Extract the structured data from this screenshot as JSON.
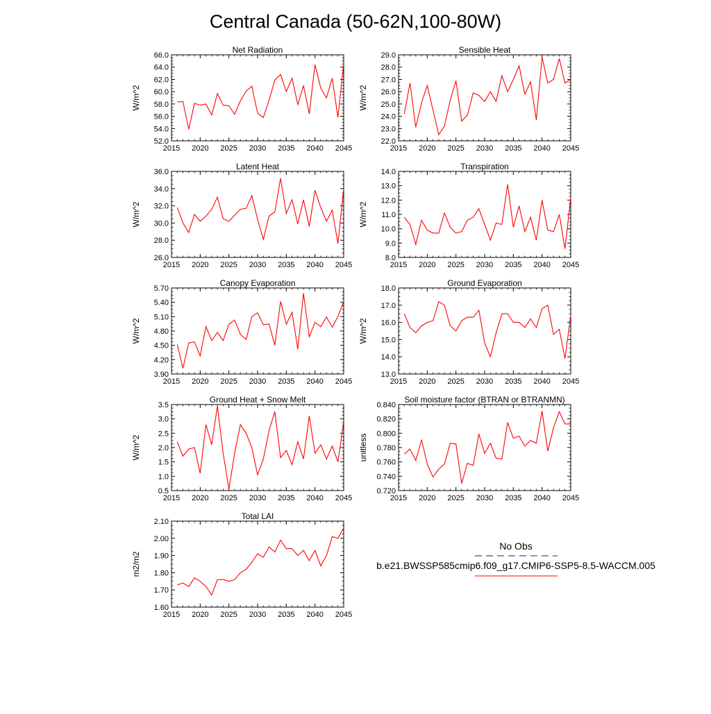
{
  "title": "Central Canada (50-62N,100-80W)",
  "legend": {
    "obs_label": "No Obs",
    "model_label": "b.e21.BWSSP585cmip6.f09_g17.CMIP6-SSP5-8.5-WACCM.005",
    "obs_color": "#1a1a8c",
    "model_color": "#ff0000"
  },
  "chart_data": [
    {
      "type": "line",
      "title": "Net Radiation",
      "ylabel": "W/m^2",
      "xlim": [
        2015,
        2045
      ],
      "ylim": [
        52.0,
        66.0
      ],
      "xticks": [
        "2015",
        "2020",
        "2025",
        "2030",
        "2035",
        "2040",
        "2045"
      ],
      "yticks": [
        "52.0",
        "54.0",
        "56.0",
        "58.0",
        "60.0",
        "62.0",
        "64.0",
        "66.0"
      ],
      "x": [
        2016,
        2017,
        2018,
        2019,
        2020,
        2021,
        2022,
        2023,
        2024,
        2025,
        2026,
        2027,
        2028,
        2029,
        2030,
        2031,
        2032,
        2033,
        2034,
        2035,
        2036,
        2037,
        2038,
        2039,
        2040,
        2041,
        2042,
        2043,
        2044,
        2045
      ],
      "series": [
        {
          "name": "b.e21.BWSSP585cmip6.f09_g17.CMIP6-SSP5-8.5-WACCM.005",
          "color": "#ff0000",
          "values": [
            58.3,
            58.4,
            53.9,
            58.1,
            57.8,
            58.0,
            56.2,
            59.7,
            57.8,
            57.7,
            56.3,
            58.5,
            60.1,
            60.9,
            56.5,
            55.8,
            58.6,
            61.9,
            62.8,
            60.0,
            62.2,
            57.9,
            61.0,
            56.4,
            64.4,
            60.6,
            59.0,
            62.2,
            55.8,
            64.6
          ]
        }
      ]
    },
    {
      "type": "line",
      "title": "Sensible Heat",
      "ylabel": "W/m^2",
      "xlim": [
        2015,
        2045
      ],
      "ylim": [
        22.0,
        29.0
      ],
      "xticks": [
        "2015",
        "2020",
        "2025",
        "2030",
        "2035",
        "2040",
        "2045"
      ],
      "yticks": [
        "22.0",
        "23.0",
        "24.0",
        "25.0",
        "26.0",
        "27.0",
        "28.0",
        "29.0"
      ],
      "x": [
        2016,
        2017,
        2018,
        2019,
        2020,
        2021,
        2022,
        2023,
        2024,
        2025,
        2026,
        2027,
        2028,
        2029,
        2030,
        2031,
        2032,
        2033,
        2034,
        2035,
        2036,
        2037,
        2038,
        2039,
        2040,
        2041,
        2042,
        2043,
        2044,
        2045
      ],
      "series": [
        {
          "name": "b.e21.BWSSP585cmip6.f09_g17.CMIP6-SSP5-8.5-WACCM.005",
          "color": "#ff0000",
          "values": [
            24.2,
            26.7,
            23.1,
            25.1,
            26.5,
            24.5,
            22.5,
            23.2,
            25.3,
            26.9,
            23.6,
            24.1,
            25.9,
            25.7,
            25.2,
            26.0,
            25.2,
            27.3,
            26.0,
            27.0,
            28.1,
            25.8,
            26.8,
            23.7,
            28.8,
            26.7,
            27.0,
            28.7,
            26.7,
            27.0
          ]
        }
      ]
    },
    {
      "type": "line",
      "title": "Latent Heat",
      "ylabel": "W/m^2",
      "xlim": [
        2015,
        2045
      ],
      "ylim": [
        26.0,
        36.0
      ],
      "xticks": [
        "2015",
        "2020",
        "2025",
        "2030",
        "2035",
        "2040",
        "2045"
      ],
      "yticks": [
        "26.0",
        "28.0",
        "30.0",
        "32.0",
        "34.0",
        "36.0"
      ],
      "x": [
        2016,
        2017,
        2018,
        2019,
        2020,
        2021,
        2022,
        2023,
        2024,
        2025,
        2026,
        2027,
        2028,
        2029,
        2030,
        2031,
        2032,
        2033,
        2034,
        2035,
        2036,
        2037,
        2038,
        2039,
        2040,
        2041,
        2042,
        2043,
        2044,
        2045
      ],
      "series": [
        {
          "name": "b.e21.BWSSP585cmip6.f09_g17.CMIP6-SSP5-8.5-WACCM.005",
          "color": "#ff0000",
          "values": [
            31.8,
            30.0,
            28.9,
            31.0,
            30.2,
            30.8,
            31.6,
            33.0,
            30.5,
            30.2,
            30.9,
            31.6,
            31.7,
            33.2,
            30.4,
            28.1,
            30.8,
            31.3,
            35.2,
            31.1,
            32.7,
            29.9,
            32.7,
            29.6,
            33.8,
            31.8,
            30.2,
            31.5,
            27.6,
            34.0
          ]
        }
      ]
    },
    {
      "type": "line",
      "title": "Transpiration",
      "ylabel": "W/m^2",
      "xlim": [
        2015,
        2045
      ],
      "ylim": [
        8.0,
        14.0
      ],
      "xticks": [
        "2015",
        "2020",
        "2025",
        "2030",
        "2035",
        "2040",
        "2045"
      ],
      "yticks": [
        "8.0",
        "9.0",
        "10.0",
        "11.0",
        "12.0",
        "13.0",
        "14.0"
      ],
      "x": [
        2016,
        2017,
        2018,
        2019,
        2020,
        2021,
        2022,
        2023,
        2024,
        2025,
        2026,
        2027,
        2028,
        2029,
        2030,
        2031,
        2032,
        2033,
        2034,
        2035,
        2036,
        2037,
        2038,
        2039,
        2040,
        2041,
        2042,
        2043,
        2044,
        2045
      ],
      "series": [
        {
          "name": "b.e21.BWSSP585cmip6.f09_g17.CMIP6-SSP5-8.5-WACCM.005",
          "color": "#ff0000",
          "values": [
            10.8,
            10.3,
            8.9,
            10.6,
            9.9,
            9.7,
            9.7,
            11.1,
            10.1,
            9.7,
            9.8,
            10.6,
            10.8,
            11.4,
            10.3,
            9.2,
            10.4,
            10.3,
            13.1,
            10.1,
            11.6,
            9.8,
            10.8,
            9.2,
            12.0,
            9.9,
            9.8,
            11.0,
            8.6,
            12.2
          ]
        }
      ]
    },
    {
      "type": "line",
      "title": "Canopy Evaporation",
      "ylabel": "W/m^2",
      "xlim": [
        2015,
        2045
      ],
      "ylim": [
        3.9,
        5.7
      ],
      "xticks": [
        "2015",
        "2020",
        "2025",
        "2030",
        "2035",
        "2040",
        "2045"
      ],
      "yticks": [
        "3.90",
        "4.20",
        "4.50",
        "4.80",
        "5.10",
        "5.40",
        "5.70"
      ],
      "x": [
        2016,
        2017,
        2018,
        2019,
        2020,
        2021,
        2022,
        2023,
        2024,
        2025,
        2026,
        2027,
        2028,
        2029,
        2030,
        2031,
        2032,
        2033,
        2034,
        2035,
        2036,
        2037,
        2038,
        2039,
        2040,
        2041,
        2042,
        2043,
        2044,
        2045
      ],
      "series": [
        {
          "name": "b.e21.BWSSP585cmip6.f09_g17.CMIP6-SSP5-8.5-WACCM.005",
          "color": "#ff0000",
          "values": [
            4.52,
            4.02,
            4.55,
            4.57,
            4.28,
            4.89,
            4.6,
            4.77,
            4.6,
            4.94,
            5.03,
            4.73,
            4.62,
            5.1,
            5.18,
            4.93,
            4.95,
            4.5,
            5.42,
            4.94,
            5.19,
            4.42,
            5.59,
            4.68,
            4.98,
            4.89,
            5.09,
            4.88,
            5.1,
            5.42
          ]
        }
      ]
    },
    {
      "type": "line",
      "title": "Ground Evaporation",
      "ylabel": "W/m^2",
      "xlim": [
        2015,
        2045
      ],
      "ylim": [
        13.0,
        18.0
      ],
      "xticks": [
        "2015",
        "2020",
        "2025",
        "2030",
        "2035",
        "2040",
        "2045"
      ],
      "yticks": [
        "13.0",
        "14.0",
        "15.0",
        "16.0",
        "17.0",
        "18.0"
      ],
      "x": [
        2016,
        2017,
        2018,
        2019,
        2020,
        2021,
        2022,
        2023,
        2024,
        2025,
        2026,
        2027,
        2028,
        2029,
        2030,
        2031,
        2032,
        2033,
        2034,
        2035,
        2036,
        2037,
        2038,
        2039,
        2040,
        2041,
        2042,
        2043,
        2044,
        2045
      ],
      "series": [
        {
          "name": "b.e21.BWSSP585cmip6.f09_g17.CMIP6-SSP5-8.5-WACCM.005",
          "color": "#ff0000",
          "values": [
            16.5,
            15.7,
            15.4,
            15.8,
            16.0,
            16.1,
            17.2,
            17.0,
            15.8,
            15.5,
            16.1,
            16.3,
            16.3,
            16.7,
            14.8,
            14.0,
            15.4,
            16.5,
            16.5,
            16.0,
            16.0,
            15.7,
            16.2,
            15.7,
            16.8,
            17.0,
            15.3,
            15.6,
            13.9,
            16.4
          ]
        }
      ]
    },
    {
      "type": "line",
      "title": "Ground Heat + Snow Melt",
      "ylabel": "W/m^2",
      "xlim": [
        2015,
        2045
      ],
      "ylim": [
        0.5,
        3.5
      ],
      "xticks": [
        "2015",
        "2020",
        "2025",
        "2030",
        "2035",
        "2040",
        "2045"
      ],
      "yticks": [
        "0.5",
        "1.0",
        "1.5",
        "2.0",
        "2.5",
        "3.0",
        "3.5"
      ],
      "x": [
        2016,
        2017,
        2018,
        2019,
        2020,
        2021,
        2022,
        2023,
        2024,
        2025,
        2026,
        2027,
        2028,
        2029,
        2030,
        2031,
        2032,
        2033,
        2034,
        2035,
        2036,
        2037,
        2038,
        2039,
        2040,
        2041,
        2042,
        2043,
        2044,
        2045
      ],
      "series": [
        {
          "name": "b.e21.BWSSP585cmip6.f09_g17.CMIP6-SSP5-8.5-WACCM.005",
          "color": "#ff0000",
          "values": [
            2.2,
            1.7,
            1.95,
            2.0,
            1.1,
            2.8,
            2.1,
            3.45,
            1.8,
            0.55,
            1.8,
            2.8,
            2.5,
            2.0,
            1.05,
            1.6,
            2.6,
            3.25,
            1.65,
            1.9,
            1.4,
            2.2,
            1.6,
            3.1,
            1.8,
            2.1,
            1.6,
            2.05,
            1.5,
            2.9
          ]
        }
      ]
    },
    {
      "type": "line",
      "title": "Soil moisture factor (BTRAN or BTRANMN)",
      "ylabel": "unitless",
      "xlim": [
        2015,
        2045
      ],
      "ylim": [
        0.72,
        0.84
      ],
      "xticks": [
        "2015",
        "2020",
        "2025",
        "2030",
        "2035",
        "2040",
        "2045"
      ],
      "yticks": [
        "0.720",
        "0.740",
        "0.760",
        "0.780",
        "0.800",
        "0.820",
        "0.840"
      ],
      "x": [
        2016,
        2017,
        2018,
        2019,
        2020,
        2021,
        2022,
        2023,
        2024,
        2025,
        2026,
        2027,
        2028,
        2029,
        2030,
        2031,
        2032,
        2033,
        2034,
        2035,
        2036,
        2037,
        2038,
        2039,
        2040,
        2041,
        2042,
        2043,
        2044,
        2045
      ],
      "series": [
        {
          "name": "b.e21.BWSSP585cmip6.f09_g17.CMIP6-SSP5-8.5-WACCM.005",
          "color": "#ff0000",
          "values": [
            0.771,
            0.778,
            0.762,
            0.791,
            0.757,
            0.739,
            0.75,
            0.757,
            0.786,
            0.785,
            0.73,
            0.758,
            0.755,
            0.799,
            0.772,
            0.786,
            0.765,
            0.764,
            0.815,
            0.793,
            0.796,
            0.782,
            0.79,
            0.786,
            0.831,
            0.775,
            0.808,
            0.83,
            0.813,
            0.813
          ]
        }
      ]
    },
    {
      "type": "line",
      "title": "Total LAI",
      "ylabel": "m2/m2",
      "xlim": [
        2015,
        2045
      ],
      "ylim": [
        1.6,
        2.1
      ],
      "xticks": [
        "2015",
        "2020",
        "2025",
        "2030",
        "2035",
        "2040",
        "2045"
      ],
      "yticks": [
        "1.60",
        "1.70",
        "1.80",
        "1.90",
        "2.00",
        "2.10"
      ],
      "x": [
        2016,
        2017,
        2018,
        2019,
        2020,
        2021,
        2022,
        2023,
        2024,
        2025,
        2026,
        2027,
        2028,
        2029,
        2030,
        2031,
        2032,
        2033,
        2034,
        2035,
        2036,
        2037,
        2038,
        2039,
        2040,
        2041,
        2042,
        2043,
        2044,
        2045
      ],
      "series": [
        {
          "name": "b.e21.BWSSP585cmip6.f09_g17.CMIP6-SSP5-8.5-WACCM.005",
          "color": "#ff0000",
          "values": [
            1.73,
            1.74,
            1.72,
            1.77,
            1.75,
            1.72,
            1.67,
            1.76,
            1.76,
            1.75,
            1.76,
            1.8,
            1.82,
            1.86,
            1.91,
            1.89,
            1.95,
            1.92,
            1.99,
            1.94,
            1.94,
            1.9,
            1.93,
            1.87,
            1.93,
            1.84,
            1.9,
            2.01,
            2.0,
            2.06
          ]
        }
      ]
    }
  ]
}
